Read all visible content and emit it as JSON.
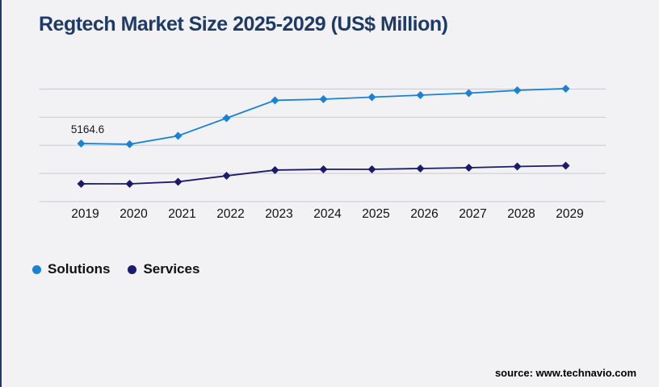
{
  "page": {
    "background_color": "#f2f2f4",
    "accent_bar_color": "#1e3a66"
  },
  "header": {
    "title": "Regtech Market Size 2025-2029 (US$ Million)",
    "title_color": "#1e3a66"
  },
  "chart_data": {
    "type": "line",
    "title": "Regtech Market Size 2025-2029 (US$ Million)",
    "categories": [
      "2019",
      "2020",
      "2021",
      "2022",
      "2023",
      "2024",
      "2025",
      "2026",
      "2027",
      "2028",
      "2029"
    ],
    "series": [
      {
        "name": "Solutions",
        "color": "#1a82d4",
        "marker": "diamond",
        "values": [
          5164.6,
          5095,
          5845,
          7420,
          9000,
          9105,
          9285,
          9460,
          9640,
          9890,
          10040
        ]
      },
      {
        "name": "Services",
        "color": "#1b1b6e",
        "marker": "diamond",
        "values": [
          1580,
          1575,
          1760,
          2290,
          2800,
          2865,
          2870,
          2940,
          3010,
          3120,
          3190
        ]
      }
    ],
    "annotations": [
      {
        "series": "Solutions",
        "category": "2019",
        "text": "5164.6"
      }
    ],
    "xlabel": "",
    "ylabel": "",
    "ylim": [
      0,
      10000
    ],
    "gridline_values": [
      0,
      2500,
      5000,
      7500,
      10000
    ],
    "grid": "horizontal",
    "gridline_color": "#c9c9cf",
    "y_axis_labels_visible": false,
    "legend_position": "bottom-left",
    "tick_label_color": "#111111"
  },
  "legend": {
    "items": [
      {
        "label": "Solutions",
        "color": "#1a82d4"
      },
      {
        "label": "Services",
        "color": "#1b1b6e"
      }
    ]
  },
  "footer": {
    "source": "source: www.technavio.com"
  }
}
